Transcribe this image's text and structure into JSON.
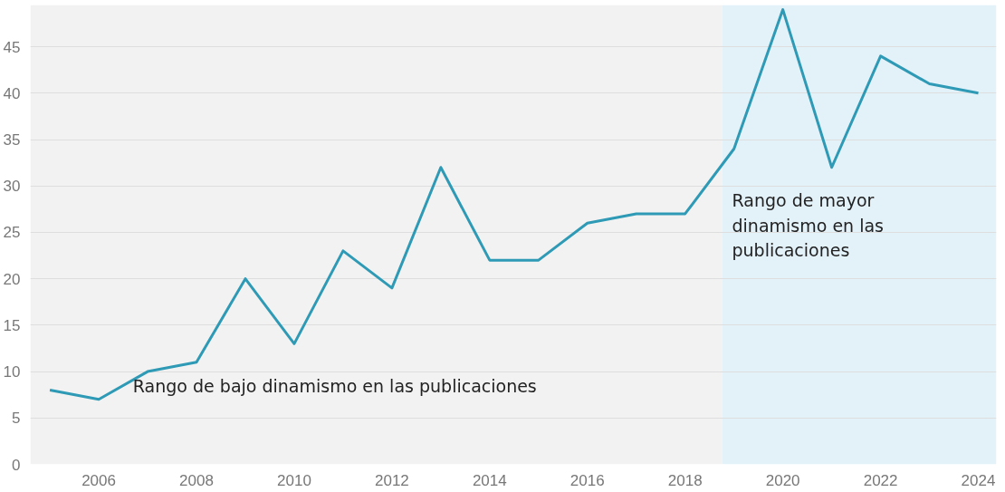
{
  "chart_data": {
    "type": "line",
    "x": [
      2005,
      2006,
      2007,
      2008,
      2009,
      2010,
      2011,
      2012,
      2013,
      2014,
      2015,
      2016,
      2017,
      2018,
      2019,
      2020,
      2021,
      2022,
      2023,
      2024
    ],
    "series": [
      {
        "color": "#2e9ab5",
        "values": [
          8,
          7,
          10,
          11,
          20,
          13,
          23,
          19,
          32,
          22,
          22,
          26,
          27,
          27,
          34,
          49,
          32,
          44,
          41,
          40
        ]
      }
    ],
    "xlim": [
      2004.6,
      2024.37
    ],
    "ylim": [
      0,
      49.5
    ],
    "xticks": [
      2006,
      2008,
      2010,
      2012,
      2014,
      2016,
      2018,
      2020,
      2022,
      2024
    ],
    "yticks": [
      0,
      5,
      10,
      15,
      20,
      25,
      30,
      35,
      40,
      45
    ],
    "bands": [
      {
        "axis": "x",
        "from": 2004.6,
        "to": 2018.76,
        "color": "#f2f2f2",
        "label": "Rango de bajo dinamismo en las publicaciones"
      },
      {
        "axis": "x",
        "from": 2018.76,
        "to": 2024.37,
        "color": "#e3f1f9",
        "label": "Rango de mayor dinamismo en las publicaciones"
      }
    ],
    "grid": "y",
    "marker": "none",
    "line_style": "solid"
  }
}
